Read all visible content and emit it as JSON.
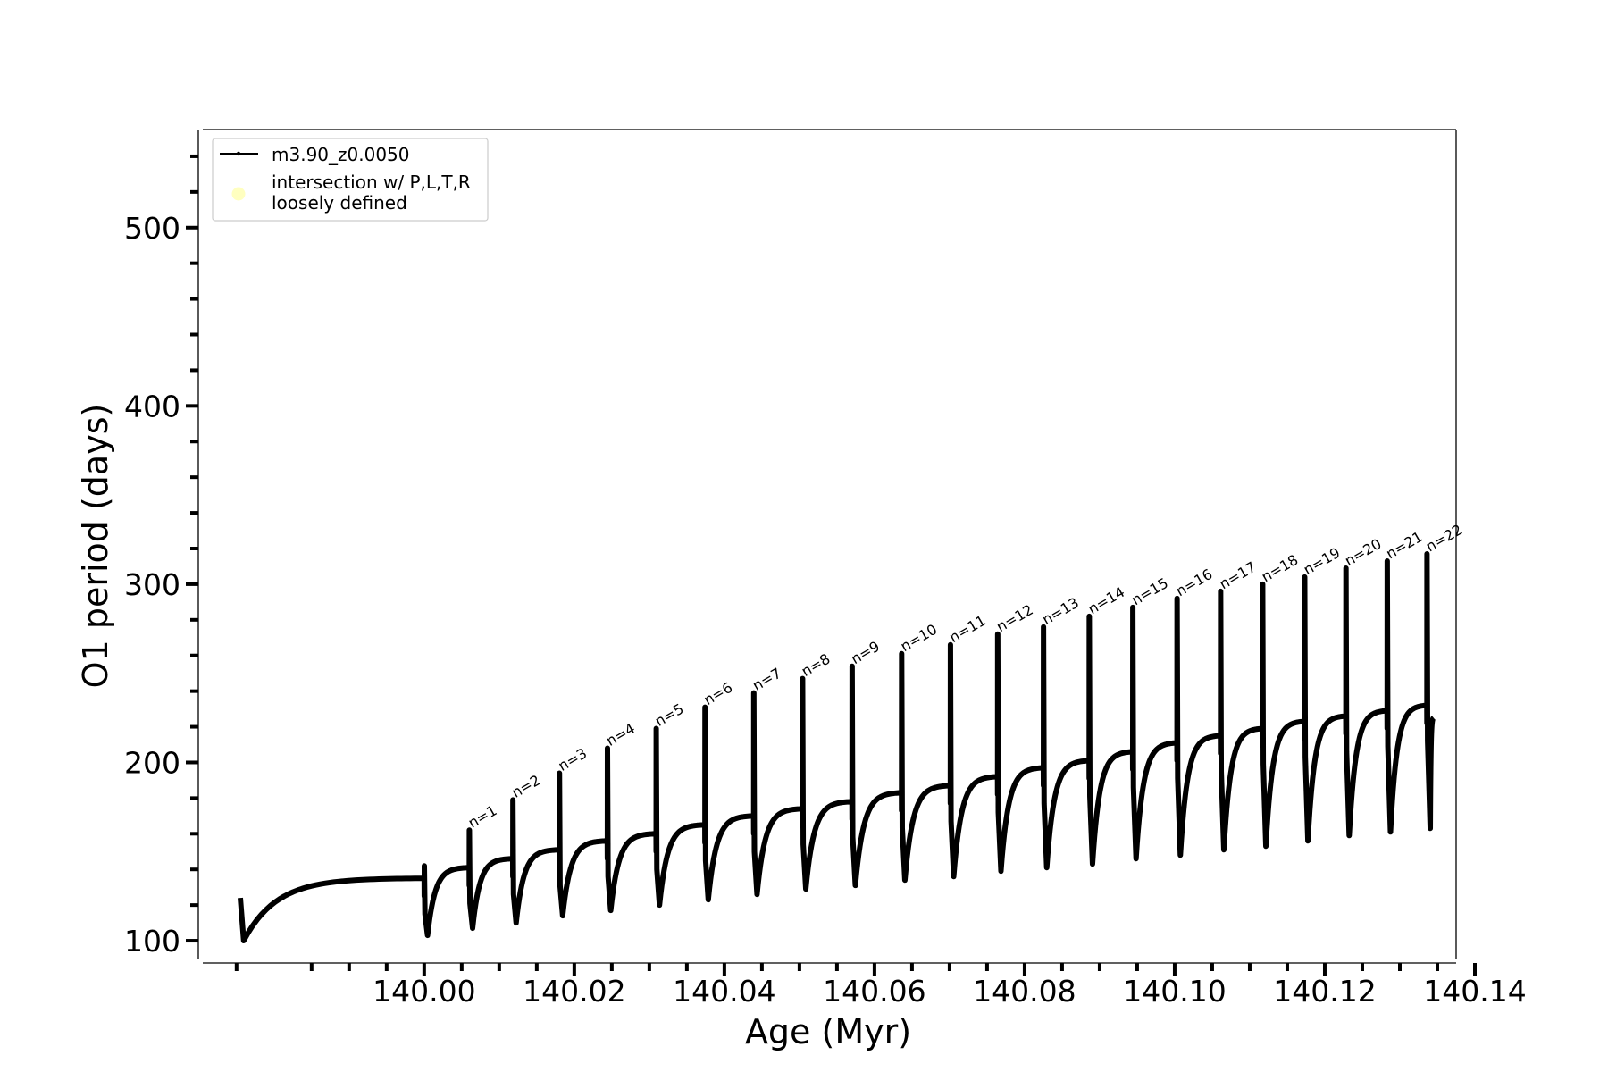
{
  "chart_data": {
    "type": "line",
    "xlabel": "Age (Myr)",
    "ylabel": "O1 period (days)",
    "xlim": [
      139.9705,
      140.1375
    ],
    "ylim": [
      90,
      555
    ],
    "xticks_major": [
      "140.00",
      "140.02",
      "140.04",
      "140.06",
      "140.08",
      "140.10",
      "140.12",
      "140.14"
    ],
    "yticks_major": [
      "100",
      "200",
      "300",
      "400",
      "500"
    ],
    "x_minor_step": 0.005,
    "y_minor_step": 20,
    "grid": false,
    "legend": {
      "placement": "upper-left",
      "entries": [
        {
          "label": "m3.90_z0.0050",
          "style": "line-marker",
          "color": "#000000"
        },
        {
          "label_lines": [
            "intersection w/ P,L,T,R",
            "loosely defined"
          ],
          "style": "circle",
          "color": "#ffffc0"
        }
      ]
    },
    "series": [
      {
        "label": "m3.90_z0.0050",
        "color": "#000000",
        "start": {
          "x": 139.9755,
          "y": 124
        },
        "end": {
          "x": 140.1345,
          "y": 225
        },
        "cycles": [
          {
            "x": 139.9755,
            "min": 100,
            "plateau": 135
          },
          {
            "x": 140.0,
            "peak": 142,
            "min": 103,
            "plateau": 141
          },
          {
            "x": 140.006,
            "peak": 162,
            "min": 107,
            "plateau": 146,
            "label": "n=1"
          },
          {
            "x": 140.0118,
            "peak": 179,
            "min": 110,
            "plateau": 151,
            "label": "n=2"
          },
          {
            "x": 140.018,
            "peak": 194,
            "min": 114,
            "plateau": 156,
            "label": "n=3"
          },
          {
            "x": 140.0244,
            "peak": 208,
            "min": 117,
            "plateau": 160,
            "label": "n=4"
          },
          {
            "x": 140.0309,
            "peak": 219,
            "min": 120,
            "plateau": 165,
            "label": "n=5"
          },
          {
            "x": 140.0374,
            "peak": 231,
            "min": 123,
            "plateau": 170,
            "label": "n=6"
          },
          {
            "x": 140.0439,
            "peak": 239,
            "min": 126,
            "plateau": 174,
            "label": "n=7"
          },
          {
            "x": 140.0504,
            "peak": 247,
            "min": 129,
            "plateau": 178,
            "label": "n=8"
          },
          {
            "x": 140.057,
            "peak": 254,
            "min": 131,
            "plateau": 183,
            "label": "n=9"
          },
          {
            "x": 140.0636,
            "peak": 261,
            "min": 134,
            "plateau": 187,
            "label": "n=10"
          },
          {
            "x": 140.0701,
            "peak": 266,
            "min": 136,
            "plateau": 192,
            "label": "n=11"
          },
          {
            "x": 140.0764,
            "peak": 272,
            "min": 139,
            "plateau": 197,
            "label": "n=12"
          },
          {
            "x": 140.0825,
            "peak": 276,
            "min": 141,
            "plateau": 201,
            "label": "n=13"
          },
          {
            "x": 140.0886,
            "peak": 282,
            "min": 143,
            "plateau": 206,
            "label": "n=14"
          },
          {
            "x": 140.0944,
            "peak": 287,
            "min": 146,
            "plateau": 211,
            "label": "n=15"
          },
          {
            "x": 140.1003,
            "peak": 292,
            "min": 148,
            "plateau": 215,
            "label": "n=16"
          },
          {
            "x": 140.1061,
            "peak": 296,
            "min": 151,
            "plateau": 219,
            "label": "n=17"
          },
          {
            "x": 140.1117,
            "peak": 300,
            "min": 153,
            "plateau": 223,
            "label": "n=18"
          },
          {
            "x": 140.1173,
            "peak": 304,
            "min": 156,
            "plateau": 226,
            "label": "n=19"
          },
          {
            "x": 140.1228,
            "peak": 309,
            "min": 159,
            "plateau": 229,
            "label": "n=20"
          },
          {
            "x": 140.1283,
            "peak": 313,
            "min": 161,
            "plateau": 232,
            "label": "n=21"
          },
          {
            "x": 140.1336,
            "peak": 317,
            "min": 163,
            "label": "n=22"
          }
        ]
      }
    ]
  }
}
